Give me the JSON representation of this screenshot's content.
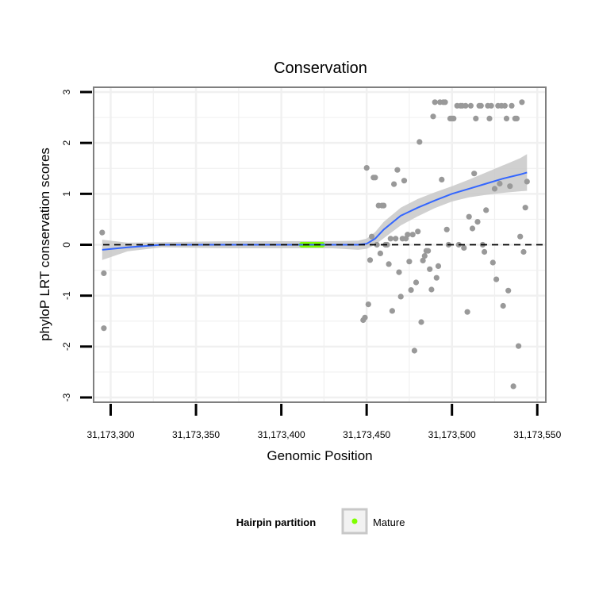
{
  "chart_data": {
    "type": "scatter",
    "title": "Conservation",
    "xlabel": "Genomic Position",
    "ylabel": "phyloP LRT conservation scores",
    "xlim": [
      31173290,
      31173555
    ],
    "ylim": [
      -3,
      3
    ],
    "x_ticks": [
      31173300,
      31173350,
      31173400,
      31173450,
      31173500,
      31173550
    ],
    "x_tick_labels": [
      "31,173,300",
      "31,173,350",
      "31,173,400",
      "31,173,450",
      "31,173,500",
      "31,173,550"
    ],
    "y_ticks": [
      -3,
      -2,
      -1,
      0,
      1,
      2,
      3
    ],
    "y_tick_labels": [
      "-3",
      "-2",
      "-1",
      "0",
      "1",
      "2",
      "3"
    ],
    "reference_line": {
      "y": 0,
      "style": "dashed",
      "color": "#000000"
    },
    "grid": true,
    "colors": {
      "points": "#999999",
      "mature": "#7FFF00",
      "smooth": "#3366FF",
      "ribbon": "#C8C8C8",
      "border": "#7F7F7F",
      "grid": "#F0F0F0"
    },
    "legend": {
      "title": "Hairpin partition",
      "placement": "bottom",
      "items": [
        {
          "label": "Mature",
          "color": "#7FFF00"
        }
      ]
    },
    "series": [
      {
        "name": "scores",
        "points": [
          [
            31173295,
            0.24
          ],
          [
            31173296,
            -0.56
          ],
          [
            31173296,
            -1.64
          ],
          [
            31173448,
            -1.48
          ],
          [
            31173449,
            -1.43
          ],
          [
            31173450,
            1.51
          ],
          [
            31173451,
            -1.17
          ],
          [
            31173452,
            -0.3
          ],
          [
            31173453,
            0.16
          ],
          [
            31173454,
            1.32
          ],
          [
            31173455,
            1.32
          ],
          [
            31173456,
            0.0
          ],
          [
            31173457,
            0.77
          ],
          [
            31173458,
            -0.17
          ],
          [
            31173459,
            0.77
          ],
          [
            31173460,
            0.77
          ],
          [
            31173461,
            0.0
          ],
          [
            31173462,
            0.0
          ],
          [
            31173463,
            -0.38
          ],
          [
            31173464,
            0.12
          ],
          [
            31173465,
            -1.3
          ],
          [
            31173466,
            1.19
          ],
          [
            31173467,
            0.12
          ],
          [
            31173468,
            1.47
          ],
          [
            31173469,
            -0.54
          ],
          [
            31173470,
            -1.02
          ],
          [
            31173471,
            0.12
          ],
          [
            31173472,
            1.26
          ],
          [
            31173473,
            0.12
          ],
          [
            31173474,
            0.2
          ],
          [
            31173475,
            -0.33
          ],
          [
            31173476,
            -0.89
          ],
          [
            31173477,
            0.2
          ],
          [
            31173478,
            -2.08
          ],
          [
            31173479,
            -0.74
          ],
          [
            31173480,
            0.26
          ],
          [
            31173481,
            2.02
          ],
          [
            31173482,
            -1.52
          ],
          [
            31173483,
            -0.31
          ],
          [
            31173484,
            -0.22
          ],
          [
            31173485,
            -0.12
          ],
          [
            31173486,
            -0.12
          ],
          [
            31173487,
            -0.48
          ],
          [
            31173488,
            -0.88
          ],
          [
            31173489,
            2.52
          ],
          [
            31173490,
            2.8
          ],
          [
            31173491,
            -0.65
          ],
          [
            31173492,
            -0.42
          ],
          [
            31173493,
            2.8
          ],
          [
            31173494,
            1.28
          ],
          [
            31173495,
            2.8
          ],
          [
            31173496,
            2.8
          ],
          [
            31173497,
            0.3
          ],
          [
            31173498,
            0.0
          ],
          [
            31173499,
            2.48
          ],
          [
            31173500,
            2.48
          ],
          [
            31173501,
            2.48
          ],
          [
            31173503,
            2.73
          ],
          [
            31173504,
            0.0
          ],
          [
            31173505,
            2.73
          ],
          [
            31173506,
            2.73
          ],
          [
            31173507,
            -0.06
          ],
          [
            31173508,
            2.73
          ],
          [
            31173509,
            -1.32
          ],
          [
            31173510,
            0.55
          ],
          [
            31173511,
            2.73
          ],
          [
            31173512,
            0.32
          ],
          [
            31173513,
            1.4
          ],
          [
            31173514,
            2.48
          ],
          [
            31173515,
            0.45
          ],
          [
            31173516,
            2.73
          ],
          [
            31173517,
            2.73
          ],
          [
            31173518,
            0.0
          ],
          [
            31173519,
            -0.14
          ],
          [
            31173520,
            0.68
          ],
          [
            31173521,
            2.73
          ],
          [
            31173522,
            2.48
          ],
          [
            31173523,
            2.73
          ],
          [
            31173524,
            -0.35
          ],
          [
            31173525,
            1.1
          ],
          [
            31173526,
            -0.68
          ],
          [
            31173527,
            2.73
          ],
          [
            31173528,
            1.2
          ],
          [
            31173529,
            2.73
          ],
          [
            31173530,
            -1.2
          ],
          [
            31173531,
            2.73
          ],
          [
            31173532,
            2.48
          ],
          [
            31173533,
            -0.9
          ],
          [
            31173534,
            1.15
          ],
          [
            31173535,
            2.73
          ],
          [
            31173536,
            -2.78
          ],
          [
            31173537,
            2.48
          ],
          [
            31173538,
            2.48
          ],
          [
            31173539,
            -1.99
          ],
          [
            31173540,
            0.16
          ],
          [
            31173541,
            2.8
          ],
          [
            31173542,
            -0.14
          ],
          [
            31173543,
            0.73
          ],
          [
            31173544,
            1.24
          ]
        ]
      },
      {
        "name": "Mature",
        "color": "#7FFF00",
        "points": [
          [
            31173412,
            0
          ],
          [
            31173413,
            0
          ],
          [
            31173414,
            0
          ],
          [
            31173415,
            0
          ],
          [
            31173416,
            0
          ],
          [
            31173417,
            0
          ],
          [
            31173418,
            0
          ],
          [
            31173419,
            0
          ],
          [
            31173420,
            0
          ],
          [
            31173421,
            0
          ],
          [
            31173422,
            0
          ],
          [
            31173423,
            0
          ],
          [
            31173424,
            0
          ]
        ]
      }
    ],
    "smooth": {
      "x": [
        31173295,
        31173310,
        31173330,
        31173350,
        31173370,
        31173390,
        31173410,
        31173430,
        31173445,
        31173450,
        31173455,
        31173460,
        31173470,
        31173480,
        31173490,
        31173500,
        31173510,
        31173520,
        31173530,
        31173540,
        31173544
      ],
      "y": [
        -0.1,
        -0.05,
        0.0,
        0.0,
        0.0,
        0.0,
        0.0,
        0.0,
        0.0,
        0.02,
        0.12,
        0.3,
        0.57,
        0.73,
        0.87,
        1.0,
        1.1,
        1.2,
        1.3,
        1.38,
        1.42
      ],
      "lower": [
        -0.3,
        -0.13,
        -0.05,
        -0.06,
        -0.07,
        -0.07,
        -0.07,
        -0.07,
        -0.1,
        -0.08,
        0.0,
        0.13,
        0.38,
        0.56,
        0.72,
        0.85,
        0.93,
        0.98,
        1.02,
        1.05,
        1.06
      ],
      "upper": [
        0.1,
        0.04,
        0.05,
        0.06,
        0.07,
        0.07,
        0.07,
        0.07,
        0.08,
        0.12,
        0.25,
        0.45,
        0.73,
        0.9,
        1.03,
        1.15,
        1.28,
        1.42,
        1.56,
        1.7,
        1.78
      ]
    }
  }
}
